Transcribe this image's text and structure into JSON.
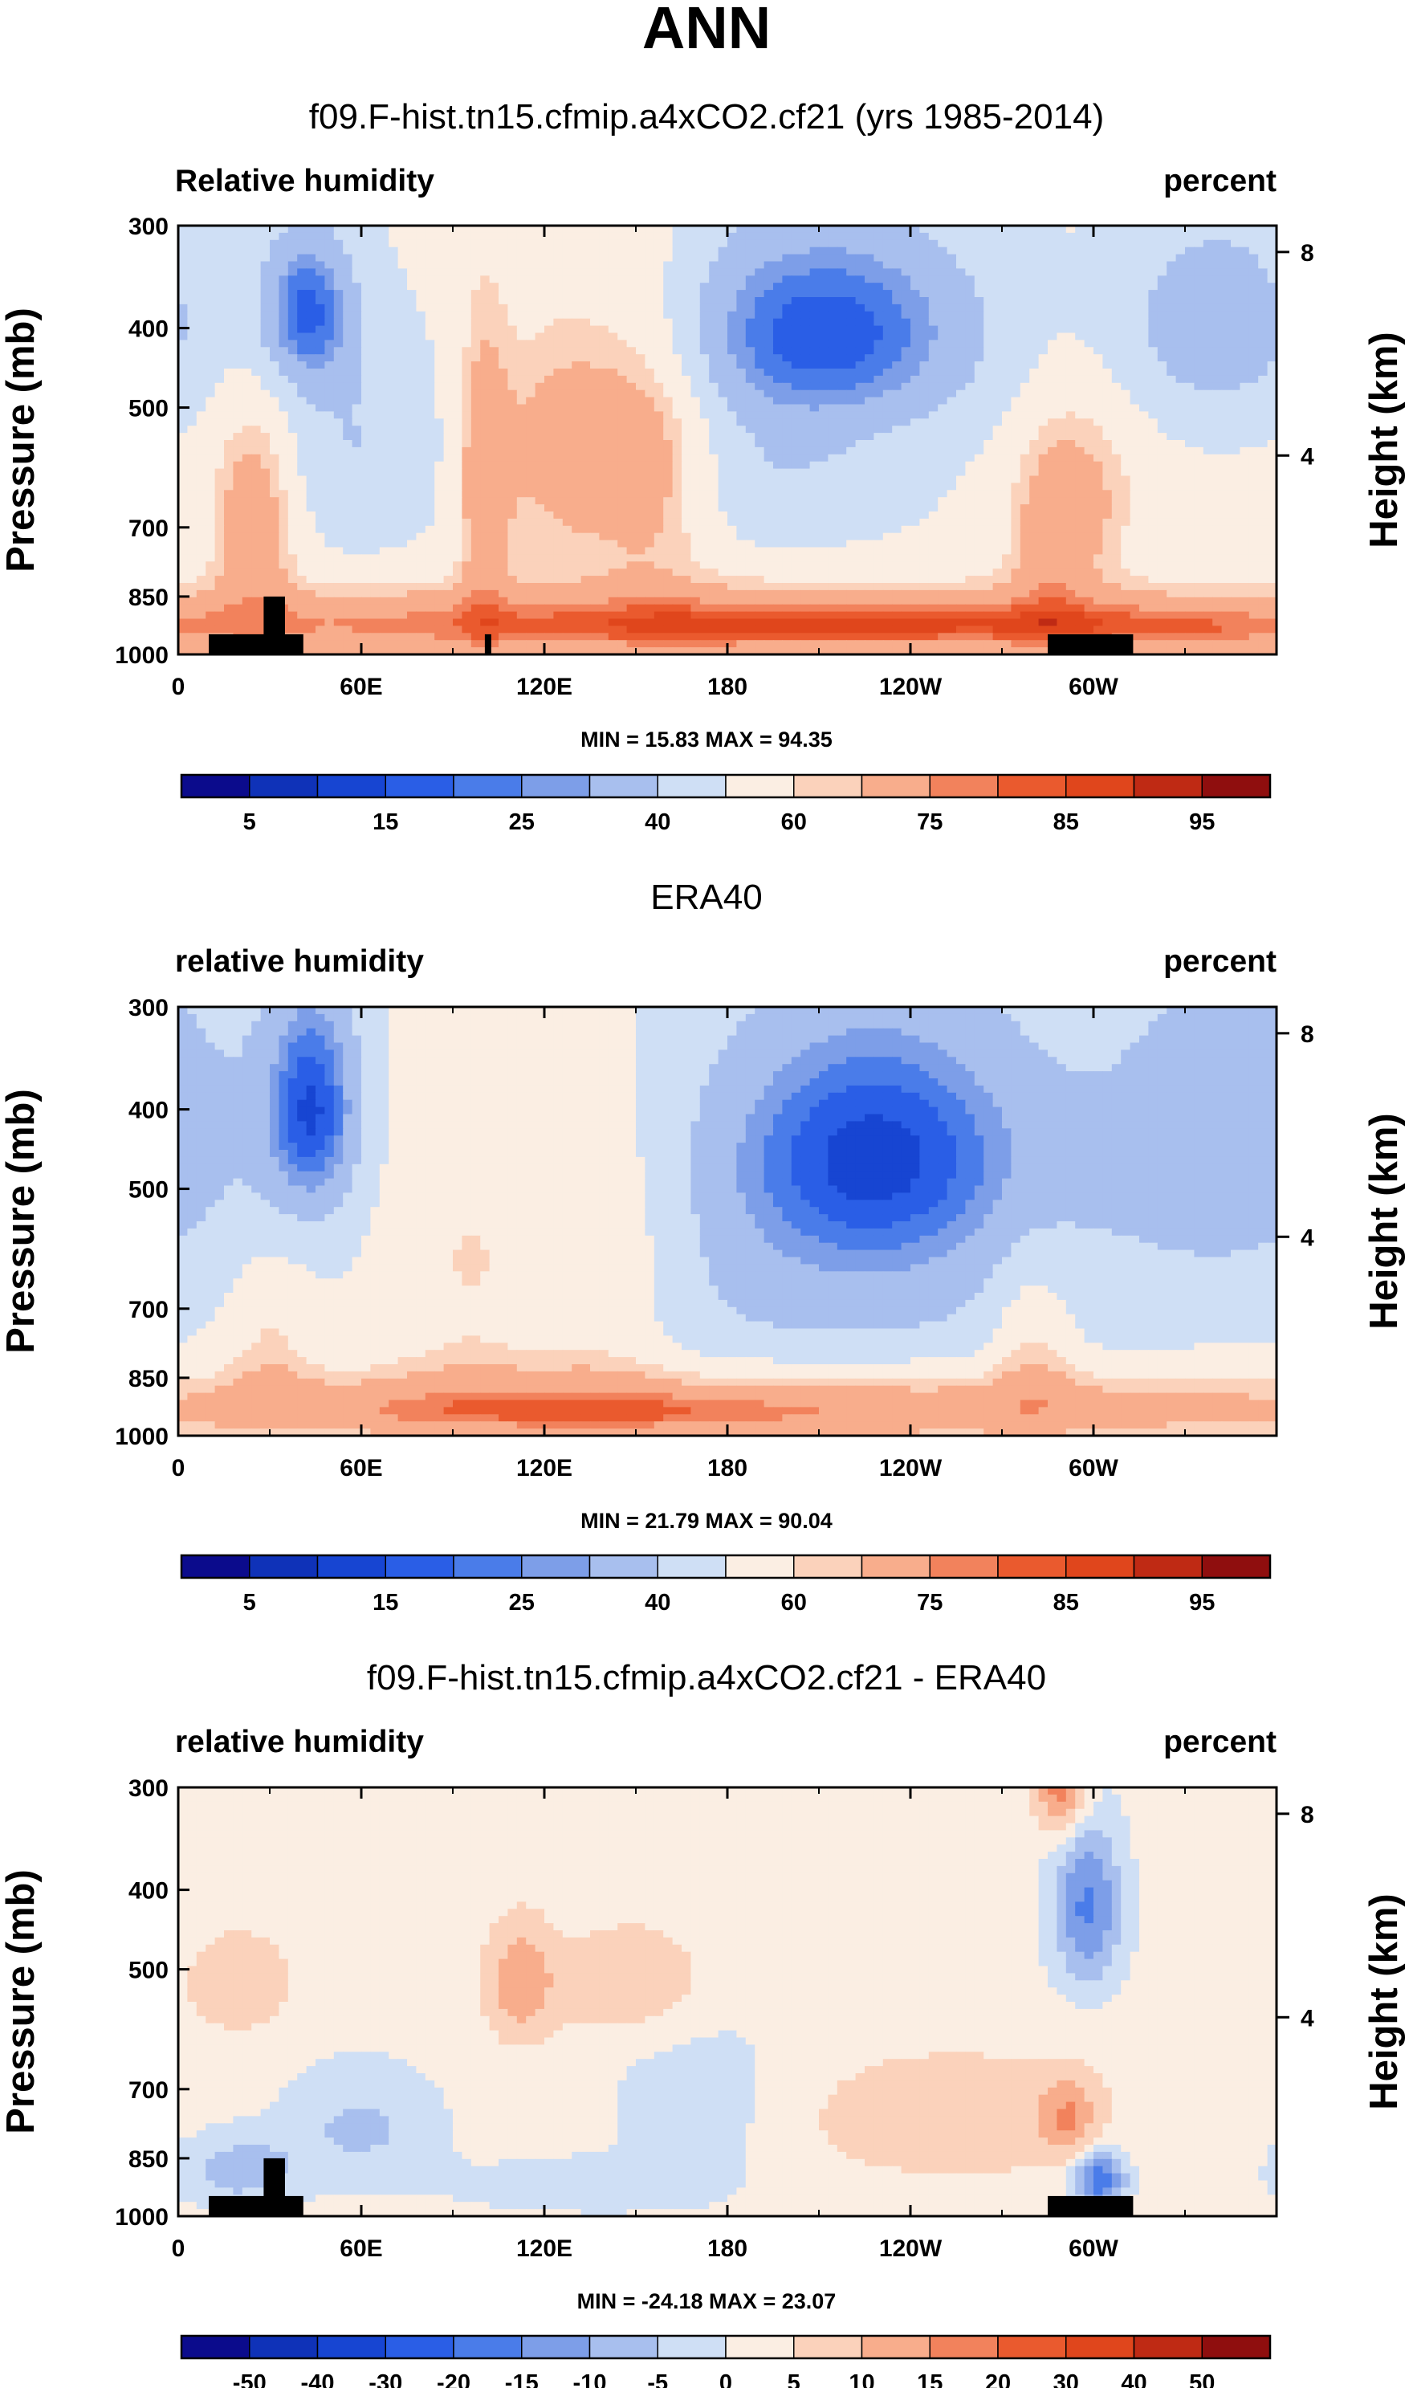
{
  "figure": {
    "title": "ANN"
  },
  "colors": {
    "rh": [
      "#0b0b8c",
      "#0f32b8",
      "#1745d2",
      "#2a5ee6",
      "#4a7ce9",
      "#7d9ee8",
      "#a8bfee",
      "#cfdff5",
      "#fbeee3",
      "#fbd2bb",
      "#f8ad8c",
      "#f2825c",
      "#ea5a2e",
      "#e0461c",
      "#bf2a14",
      "#8f0e0e"
    ],
    "diff": [
      "#0b0b8c",
      "#0f32b8",
      "#1745d2",
      "#2a5ee6",
      "#4a7ce9",
      "#7d9ee8",
      "#a8bfee",
      "#cfdff5",
      "#fbeee3",
      "#fbd2bb",
      "#f8ad8c",
      "#f2825c",
      "#ea5a2e",
      "#e0461c",
      "#bf2a14",
      "#8f0e0e"
    ],
    "land": "#000000"
  },
  "chart_data": [
    {
      "type": "contour",
      "subtitle": "f09.F-hist.tn15.cfmip.a4xCO2.cf21 (yrs 1985-2014)",
      "left_label": "Relative humidity",
      "right_label": "percent",
      "ylabel": "Pressure (mb)",
      "ylabel_right": "Height (km)",
      "xticks": [
        "0",
        "60E",
        "120E",
        "180",
        "120W",
        "60W"
      ],
      "x_tick_lon": [
        0,
        60,
        120,
        180,
        240,
        300
      ],
      "xlim": [
        0,
        360
      ],
      "yticks": [
        "300",
        "400",
        "500",
        "700",
        "850",
        "1000"
      ],
      "y_tick_values": [
        300,
        400,
        500,
        700,
        850,
        1000
      ],
      "ylim": [
        300,
        1000
      ],
      "right_ticks": [
        "8",
        "4"
      ],
      "right_tick_km": [
        8,
        4
      ],
      "stats": "MIN = 15.83  MAX = 94.35",
      "colorbar_labels": [
        "5",
        "15",
        "25",
        "40",
        "60",
        "75",
        "85",
        "95"
      ],
      "colorbar_levels": [
        5,
        10,
        15,
        20,
        25,
        30,
        40,
        50,
        60,
        65,
        75,
        80,
        85,
        90,
        95
      ],
      "field": "model",
      "land": true
    },
    {
      "type": "contour",
      "subtitle": "ERA40",
      "left_label": "relative humidity",
      "right_label": "percent",
      "ylabel": "Pressure (mb)",
      "ylabel_right": "Height (km)",
      "xticks": [
        "0",
        "60E",
        "120E",
        "180",
        "120W",
        "60W"
      ],
      "x_tick_lon": [
        0,
        60,
        120,
        180,
        240,
        300
      ],
      "xlim": [
        0,
        360
      ],
      "yticks": [
        "300",
        "400",
        "500",
        "700",
        "850",
        "1000"
      ],
      "y_tick_values": [
        300,
        400,
        500,
        700,
        850,
        1000
      ],
      "ylim": [
        300,
        1000
      ],
      "right_ticks": [
        "8",
        "4"
      ],
      "right_tick_km": [
        8,
        4
      ],
      "stats": "MIN = 21.79  MAX = 90.04",
      "colorbar_labels": [
        "5",
        "15",
        "25",
        "40",
        "60",
        "75",
        "85",
        "95"
      ],
      "colorbar_levels": [
        5,
        10,
        15,
        20,
        25,
        30,
        40,
        50,
        60,
        65,
        75,
        80,
        85,
        90,
        95
      ],
      "field": "obs",
      "land": false
    },
    {
      "type": "contour",
      "subtitle": "f09.F-hist.tn15.cfmip.a4xCO2.cf21 - ERA40",
      "left_label": "relative humidity",
      "right_label": "percent",
      "ylabel": "Pressure (mb)",
      "ylabel_right": "Height (km)",
      "xticks": [
        "0",
        "60E",
        "120E",
        "180",
        "120W",
        "60W"
      ],
      "x_tick_lon": [
        0,
        60,
        120,
        180,
        240,
        300
      ],
      "xlim": [
        0,
        360
      ],
      "yticks": [
        "300",
        "400",
        "500",
        "700",
        "850",
        "1000"
      ],
      "y_tick_values": [
        300,
        400,
        500,
        700,
        850,
        1000
      ],
      "ylim": [
        300,
        1000
      ],
      "right_ticks": [
        "8",
        "4"
      ],
      "right_tick_km": [
        8,
        4
      ],
      "stats": "MIN = -24.18  MAX = 23.07",
      "colorbar_labels": [
        "-50",
        "-40",
        "-30",
        "-20",
        "-15",
        "-10",
        "-5",
        "0",
        "5",
        "10",
        "15",
        "20",
        "30",
        "40",
        "50"
      ],
      "colorbar_levels": [
        -50,
        -40,
        -30,
        -20,
        -15,
        -10,
        -5,
        0,
        5,
        10,
        15,
        20,
        30,
        40,
        50
      ],
      "field": "diff",
      "land": true
    }
  ]
}
